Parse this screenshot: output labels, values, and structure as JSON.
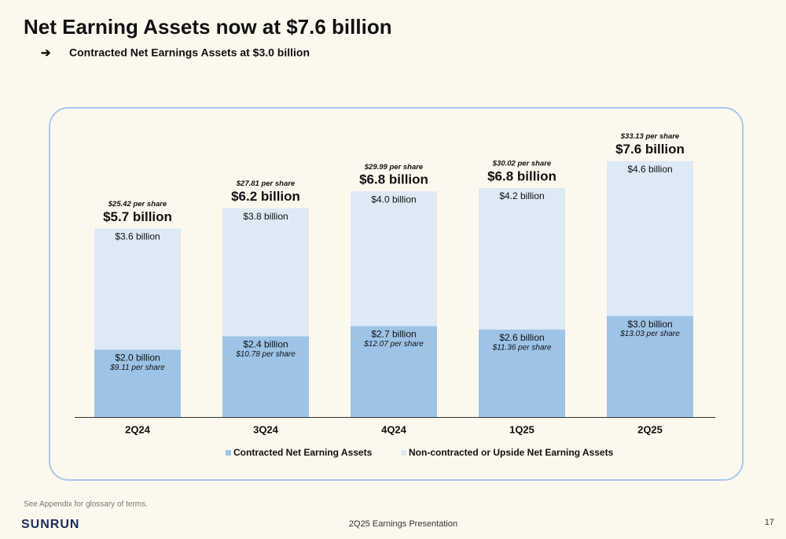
{
  "header": {
    "title": "Net Earning Assets now at $7.6 billion",
    "bullet": "Contracted Net Earnings Assets at $3.0 billion"
  },
  "chart_data": {
    "type": "stacked-bar",
    "categories": [
      "2Q24",
      "3Q24",
      "4Q24",
      "1Q25",
      "2Q25"
    ],
    "series": [
      {
        "name": "Contracted Net Earning Assets",
        "color": "#9dc3e6",
        "values": [
          2.0,
          2.4,
          2.7,
          2.6,
          3.0
        ],
        "value_labels": [
          "$2.0 billion",
          "$2.4 billion",
          "$2.7 billion",
          "$2.6 billion",
          "$3.0 billion"
        ],
        "per_share": [
          9.11,
          10.78,
          12.07,
          11.36,
          13.03
        ],
        "per_share_labels": [
          "$9.11 per share",
          "$10.78 per share",
          "$12.07 per share",
          "$11.36 per share",
          "$13.03 per share"
        ]
      },
      {
        "name": "Non-contracted or Upside Net Earning Assets",
        "color": "#dde9f5",
        "values": [
          3.6,
          3.8,
          4.0,
          4.2,
          4.6
        ],
        "value_labels": [
          "$3.6 billion",
          "$3.8 billion",
          "$4.0 billion",
          "$4.2 billion",
          "$4.6 billion"
        ]
      }
    ],
    "totals": {
      "values": [
        5.7,
        6.2,
        6.8,
        6.8,
        7.6
      ],
      "value_labels": [
        "$5.7 billion",
        "$6.2 billion",
        "$6.8 billion",
        "$6.8 billion",
        "$7.6 billion"
      ],
      "per_share": [
        25.42,
        27.81,
        29.99,
        30.02,
        33.13
      ],
      "per_share_labels": [
        "$25.42 per share",
        "$27.81 per share",
        "$29.99 per share",
        "$30.02 per share",
        "$33.13 per share"
      ]
    },
    "legend": "bottom"
  },
  "footnote": "See Appendix for glossary of terms.",
  "footer": {
    "logo": "SUNRUN",
    "center": "2Q25 Earnings Presentation",
    "page": "17"
  }
}
